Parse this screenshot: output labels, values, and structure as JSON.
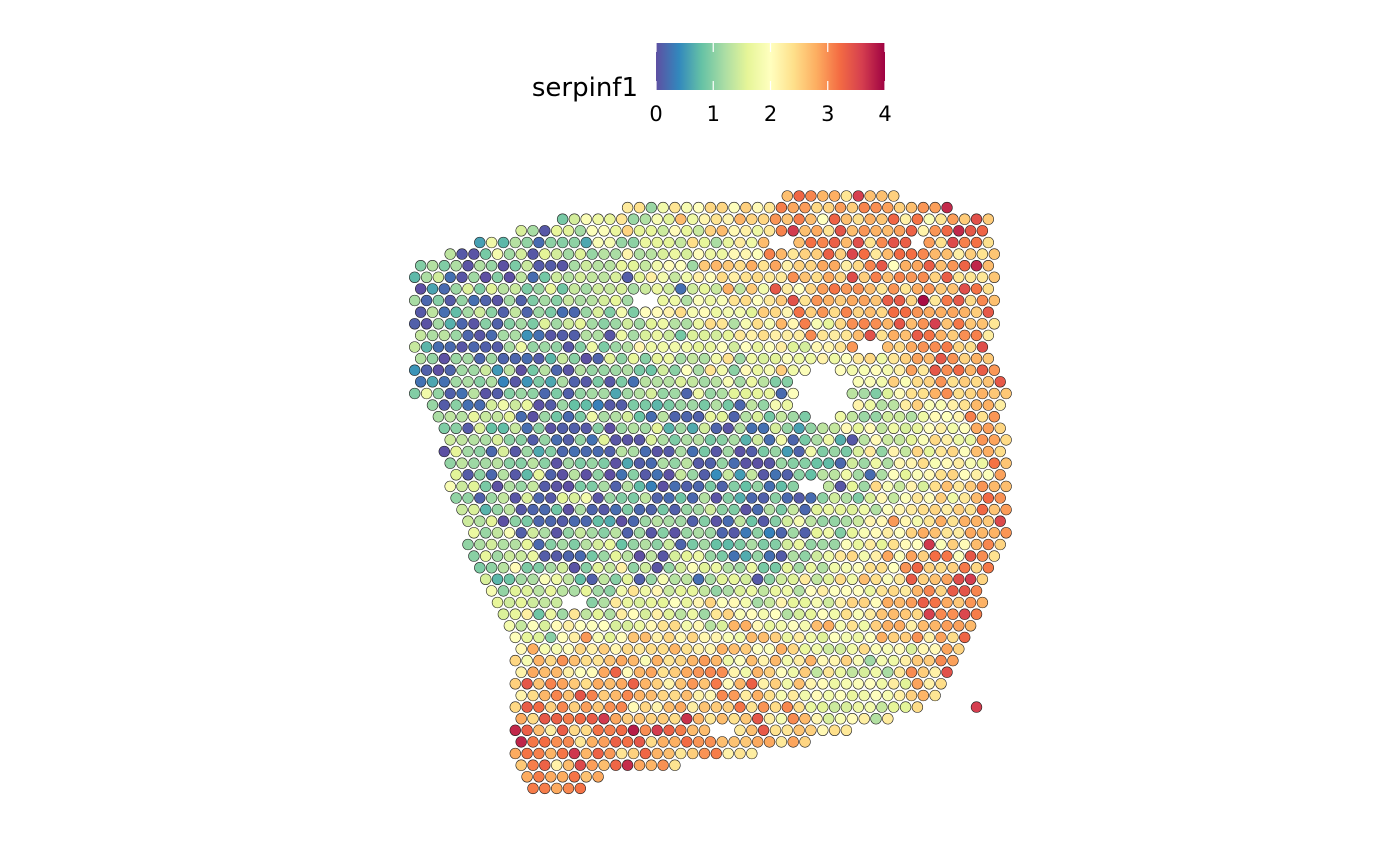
{
  "chart_data": {
    "type": "scatter",
    "subtype": "spatial-feature-plot",
    "feature": "serpinf1",
    "legend": {
      "title": "serpinf1",
      "position": "top",
      "orientation": "horizontal",
      "range": [
        0,
        4
      ],
      "ticks": [
        "0",
        "1",
        "2",
        "3",
        "4"
      ],
      "palette": [
        "#5E4FA2",
        "#3288BD",
        "#66C2A5",
        "#ABDDA4",
        "#E6F598",
        "#FFFFBF",
        "#FEE08B",
        "#FDAE61",
        "#F46D43",
        "#D53E4F",
        "#9E0142"
      ]
    },
    "axes": {
      "visible": false,
      "grid": false
    },
    "grid": {
      "columns": 104,
      "rows": 104,
      "hexagonal": true
    },
    "tissue": {
      "outline": [
        [
          3,
          12
        ],
        [
          10,
          9
        ],
        [
          20,
          6
        ],
        [
          30,
          3
        ],
        [
          45,
          1
        ],
        [
          65,
          0
        ],
        [
          85,
          0
        ],
        [
          100,
          3
        ],
        [
          102,
          11
        ],
        [
          102,
          20
        ],
        [
          100,
          26
        ],
        [
          104,
          33
        ],
        [
          102,
          37
        ],
        [
          104,
          40
        ],
        [
          104,
          48
        ],
        [
          104,
          58
        ],
        [
          100,
          68
        ],
        [
          97,
          77
        ],
        [
          92,
          86
        ],
        [
          85,
          90
        ],
        [
          62,
          96
        ],
        [
          48,
          98
        ],
        [
          35,
          100
        ],
        [
          28,
          104
        ],
        [
          22,
          104
        ],
        [
          20,
          96
        ],
        [
          20,
          80
        ],
        [
          16,
          70
        ],
        [
          12,
          60
        ],
        [
          9,
          50
        ],
        [
          7,
          40
        ],
        [
          3,
          34
        ],
        [
          3,
          20
        ]
      ],
      "holes": [
        [
          72,
          34,
          4.5
        ],
        [
          65,
          8,
          2
        ],
        [
          88,
          8,
          1.5
        ],
        [
          42,
          18,
          1.2
        ],
        [
          80,
          26,
          1.2
        ],
        [
          30,
          70,
          1.2
        ],
        [
          70,
          50,
          1.2
        ],
        [
          55,
          92,
          2
        ]
      ],
      "stray_spots": [
        [
          98,
          88,
          3.6
        ]
      ]
    },
    "expression_regions": [
      {
        "x": 72,
        "y": 5,
        "r": 24,
        "value": 2.9
      },
      {
        "x": 88,
        "y": 10,
        "r": 18,
        "value": 3.1
      },
      {
        "x": 15,
        "y": 25,
        "r": 22,
        "value": 0.6
      },
      {
        "x": 42,
        "y": 22,
        "r": 22,
        "value": 1.3
      },
      {
        "x": 30,
        "y": 55,
        "r": 22,
        "value": 0.5
      },
      {
        "x": 62,
        "y": 55,
        "r": 18,
        "value": 0.3
      },
      {
        "x": 75,
        "y": 46,
        "r": 14,
        "value": 0.8
      },
      {
        "x": 90,
        "y": 60,
        "r": 16,
        "value": 3.0
      },
      {
        "x": 94,
        "y": 74,
        "r": 14,
        "value": 3.2
      },
      {
        "x": 52,
        "y": 82,
        "r": 20,
        "value": 2.9
      },
      {
        "x": 28,
        "y": 90,
        "r": 14,
        "value": 3.3
      },
      {
        "x": 18,
        "y": 62,
        "r": 10,
        "value": 1.5
      },
      {
        "x": 80,
        "y": 82,
        "r": 10,
        "value": 1.2
      },
      {
        "x": 10,
        "y": 44,
        "r": 10,
        "value": 1.8
      }
    ],
    "default_value": 2.2,
    "noise": 1.1,
    "seed": 7
  }
}
